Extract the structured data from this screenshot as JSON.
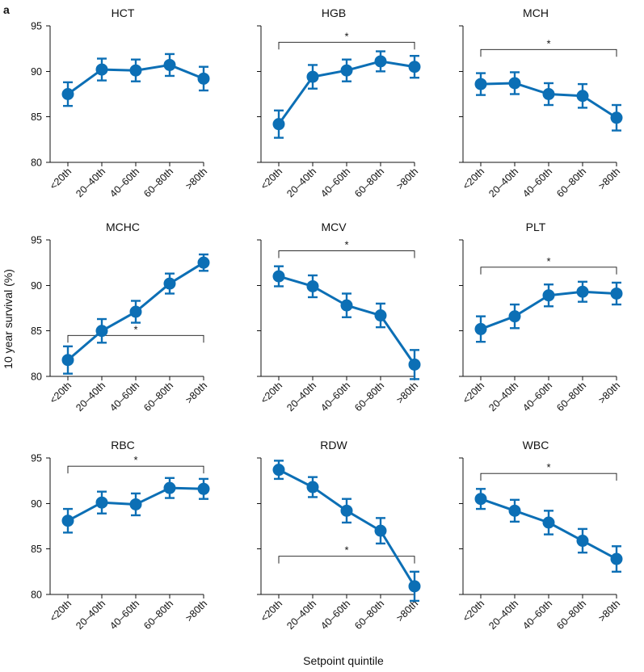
{
  "panel_letter": "a",
  "y_axis_label": "10 year survival (%)",
  "x_axis_label": "Setpoint quintile",
  "series_color": "#0c6fb5",
  "chart_data": [
    {
      "type": "line",
      "title": "HCT",
      "categories": [
        "<20th",
        "20–40th",
        "40–60th",
        "60–80th",
        ">80th"
      ],
      "yticks": [
        80,
        85,
        90,
        95
      ],
      "ylim": [
        80,
        95
      ],
      "values": [
        87.5,
        90.2,
        90.1,
        90.7,
        89.2
      ],
      "err": [
        1.3,
        1.2,
        1.2,
        1.2,
        1.3
      ],
      "significance": null
    },
    {
      "type": "line",
      "title": "HGB",
      "categories": [
        "<20th",
        "20–40th",
        "40–60th",
        "60–80th",
        ">80th"
      ],
      "yticks": [
        80,
        85,
        90,
        95
      ],
      "ylim": [
        80,
        95
      ],
      "values": [
        84.2,
        89.4,
        90.1,
        91.1,
        90.5
      ],
      "err": [
        1.5,
        1.3,
        1.2,
        1.1,
        1.2
      ],
      "significance": {
        "from": 0,
        "to": 4,
        "value": 93.2,
        "label": "*"
      }
    },
    {
      "type": "line",
      "title": "MCH",
      "categories": [
        "<20th",
        "20–40th",
        "40–60th",
        "60–80th",
        ">80th"
      ],
      "yticks": [
        80,
        85,
        90,
        95
      ],
      "ylim": [
        80,
        95
      ],
      "values": [
        88.6,
        88.7,
        87.5,
        87.3,
        84.9
      ],
      "err": [
        1.2,
        1.2,
        1.2,
        1.3,
        1.4
      ],
      "significance": {
        "from": 0,
        "to": 4,
        "value": 92.4,
        "label": "*"
      }
    },
    {
      "type": "line",
      "title": "MCHC",
      "categories": [
        "<20th",
        "20–40th",
        "40–60th",
        "60–80th",
        ">80th"
      ],
      "yticks": [
        80,
        85,
        90,
        95
      ],
      "ylim": [
        80,
        95
      ],
      "values": [
        81.8,
        85.0,
        87.1,
        90.2,
        92.5
      ],
      "err": [
        1.5,
        1.3,
        1.2,
        1.1,
        0.9
      ],
      "significance": {
        "from": 0,
        "to": 4,
        "value": 84.5,
        "label": "*"
      }
    },
    {
      "type": "line",
      "title": "MCV",
      "categories": [
        "<20th",
        "20–40th",
        "40–60th",
        "60–80th",
        ">80th"
      ],
      "yticks": [
        80,
        85,
        90,
        95
      ],
      "ylim": [
        80,
        95
      ],
      "values": [
        91.0,
        89.9,
        87.8,
        86.7,
        81.3
      ],
      "err": [
        1.1,
        1.2,
        1.3,
        1.3,
        1.6
      ],
      "significance": {
        "from": 0,
        "to": 4,
        "value": 93.8,
        "label": "*"
      }
    },
    {
      "type": "line",
      "title": "PLT",
      "categories": [
        "<20th",
        "20–40th",
        "40–60th",
        "60–80th",
        ">80th"
      ],
      "yticks": [
        80,
        85,
        90,
        95
      ],
      "ylim": [
        80,
        95
      ],
      "values": [
        85.2,
        86.6,
        88.9,
        89.3,
        89.1
      ],
      "err": [
        1.4,
        1.3,
        1.2,
        1.1,
        1.2
      ],
      "significance": {
        "from": 0,
        "to": 4,
        "value": 92.0,
        "label": "*"
      }
    },
    {
      "type": "line",
      "title": "RBC",
      "categories": [
        "<20th",
        "20–40th",
        "40–60th",
        "60–80th",
        ">80th"
      ],
      "yticks": [
        80,
        85,
        90,
        95
      ],
      "ylim": [
        80,
        95
      ],
      "values": [
        88.1,
        90.1,
        89.9,
        91.7,
        91.6
      ],
      "err": [
        1.3,
        1.2,
        1.2,
        1.1,
        1.1
      ],
      "significance": {
        "from": 0,
        "to": 4,
        "value": 94.1,
        "label": "*"
      }
    },
    {
      "type": "line",
      "title": "RDW",
      "categories": [
        "<20th",
        "20–40th",
        "40–60th",
        "60–80th",
        ">80th"
      ],
      "yticks": [
        80,
        85,
        90,
        95
      ],
      "ylim": [
        80,
        95
      ],
      "values": [
        93.7,
        91.8,
        89.2,
        87.0,
        80.9
      ],
      "err": [
        1.0,
        1.1,
        1.3,
        1.4,
        1.6
      ],
      "significance": {
        "from": 0,
        "to": 4,
        "value": 84.2,
        "label": "*"
      }
    },
    {
      "type": "line",
      "title": "WBC",
      "categories": [
        "<20th",
        "20–40th",
        "40–60th",
        "60–80th",
        ">80th"
      ],
      "yticks": [
        80,
        85,
        90,
        95
      ],
      "ylim": [
        80,
        95
      ],
      "values": [
        90.5,
        89.2,
        87.9,
        85.9,
        83.9
      ],
      "err": [
        1.1,
        1.2,
        1.3,
        1.3,
        1.4
      ],
      "significance": {
        "from": 0,
        "to": 4,
        "value": 93.3,
        "label": "*"
      }
    }
  ]
}
